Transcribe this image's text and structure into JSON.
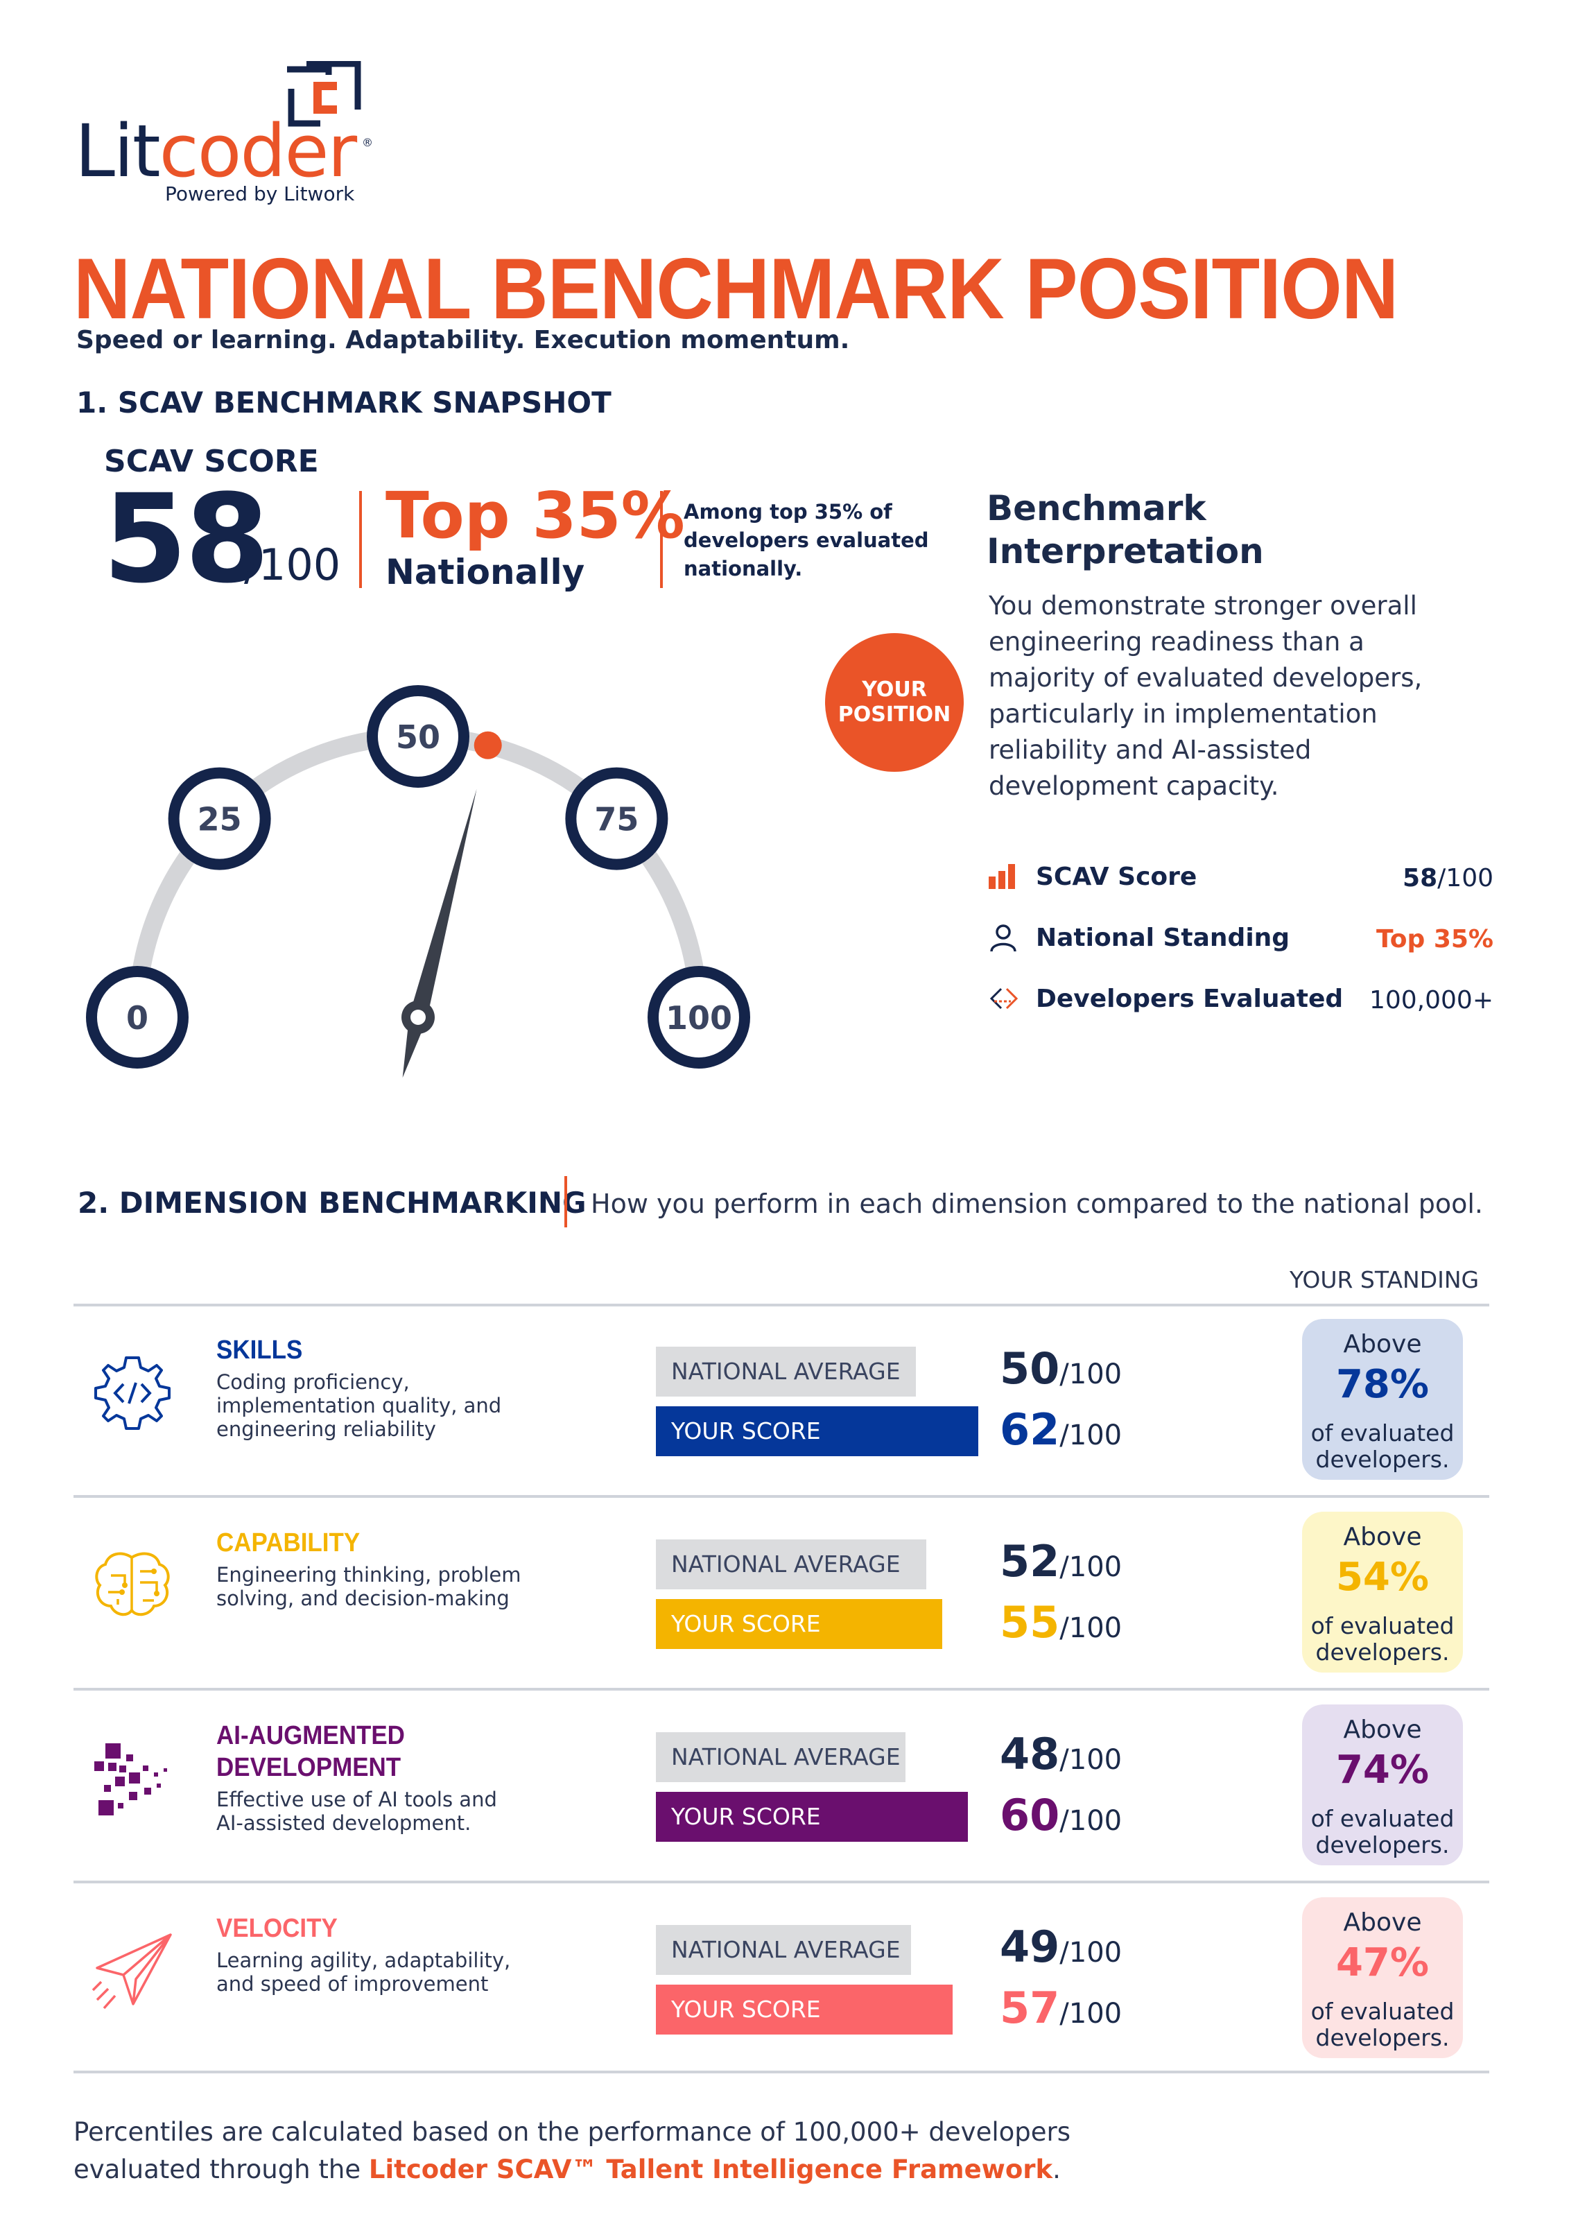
{
  "logo": {
    "word_lit": "Lit",
    "word_coder": "coder",
    "registered": "®",
    "tagline": "Powered by Litwork",
    "mark_letter": "C"
  },
  "header": {
    "title": "NATIONAL BENCHMARK POSITION",
    "subtitle": "Speed or learning. Adaptability. Execution momentum."
  },
  "snapshot": {
    "heading": "1. SCAV BENCHMARK SNAPSHOT",
    "score_label": "SCAV SCORE",
    "score": "58",
    "score_denominator": "/100",
    "top_percent": "Top 35%",
    "top_scope": "Nationally",
    "note": "Among top 35% of developers evaluated nationally."
  },
  "gauge": {
    "min": 0,
    "max": 100,
    "value": 58,
    "ticks": [
      "0",
      "25",
      "50",
      "75",
      "100"
    ],
    "position_badge": "YOUR POSITION",
    "accent": "#ea5428",
    "navy": "#14244a"
  },
  "interpretation": {
    "title": "Benchmark Interpretation",
    "body": "You demonstrate stronger overall engineering readiness than a majority of evaluated developers, particularly in implementation reliability and AI-assisted development capacity.",
    "stats": [
      {
        "icon": "bar-chart-icon",
        "label": "SCAV Score",
        "value_main": "58",
        "value_suffix": "/100",
        "color": "#14244a"
      },
      {
        "icon": "user-icon",
        "label": "National Standing",
        "value_main": "Top 35%",
        "value_suffix": "",
        "color": "#ea5428"
      },
      {
        "icon": "code-arrows-icon",
        "label": "Developers Evaluated",
        "value_main": "100,000+",
        "value_suffix": "",
        "color": "#14244a"
      }
    ]
  },
  "dimensions": {
    "heading": "2. DIMENSION BENCHMARKING",
    "description": "How you perform in each dimension compared to the national pool.",
    "standing_header": "YOUR STANDING",
    "avg_label": "NATIONAL AVERAGE",
    "you_label": "YOUR SCORE",
    "denominator": "/100",
    "above_label": "Above",
    "of_label": "of evaluated developers.",
    "items": [
      {
        "name": "SKILLS",
        "description": "Coding proficiency, implementation quality, and engineering reliability",
        "icon": "gear-code-icon",
        "national_average": 50,
        "your_score": 62,
        "above_percent": "78%",
        "color": "#05379a",
        "tint": "#d1dbee"
      },
      {
        "name": "CAPABILITY",
        "description": "Engineering thinking, problem solving, and decision-making",
        "icon": "brain-circuit-icon",
        "national_average": 52,
        "your_score": 55,
        "above_percent": "54%",
        "color": "#f4b400",
        "tint": "#fdf6c8"
      },
      {
        "name": "AI-AUGMENTED DEVELOPMENT",
        "description": "Effective use of AI tools and AI-assisted development.",
        "icon": "pixel-ai-icon",
        "national_average": 48,
        "your_score": 60,
        "above_percent": "74%",
        "color": "#6a0f6e",
        "tint": "#e5def0"
      },
      {
        "name": "VELOCITY",
        "description": "Learning agility, adaptability, and speed of improvement",
        "icon": "paper-plane-icon",
        "national_average": 49,
        "your_score": 57,
        "above_percent": "47%",
        "color": "#fb6569",
        "tint": "#fde3e3"
      }
    ]
  },
  "footer": {
    "text_before": "Percentiles are calculated based on the performance of 100,000+ developers evaluated through the ",
    "link_text": "Litcoder SCAV™ Tallent Intelligence Framework",
    "text_after": "."
  }
}
